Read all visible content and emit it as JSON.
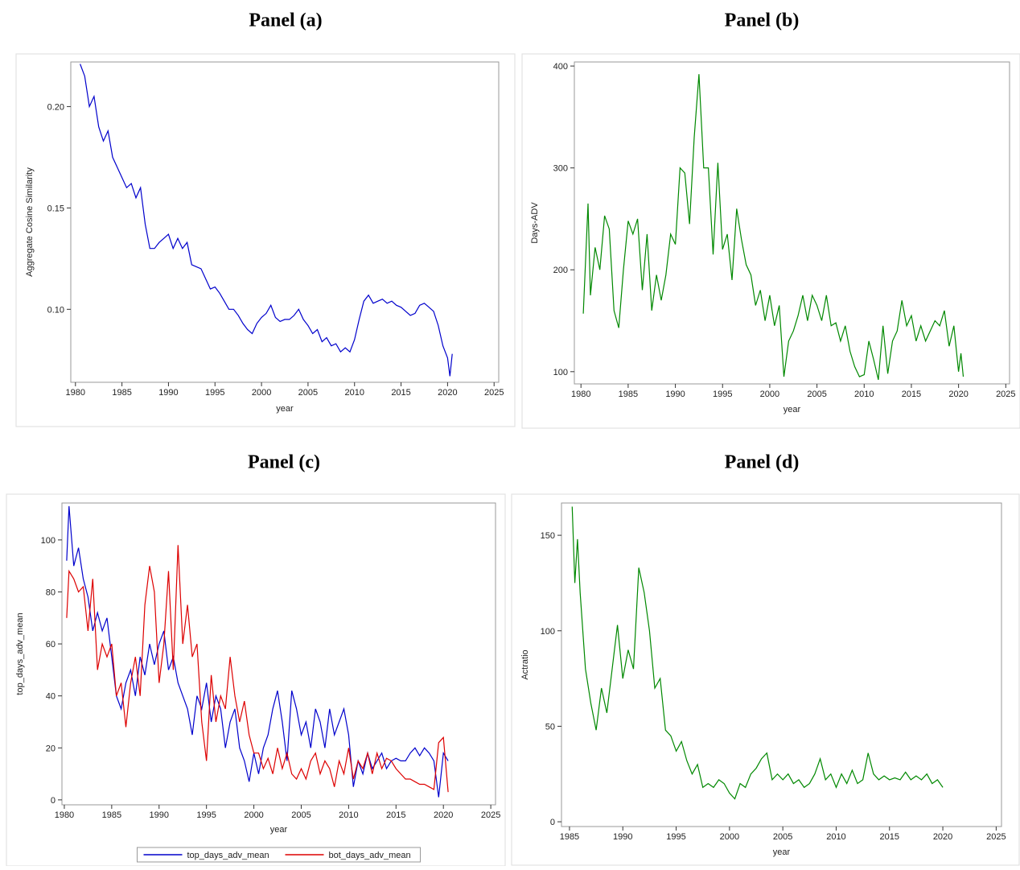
{
  "chart_data": [
    {
      "type": "line",
      "title": "Panel (a)",
      "xlabel": "year",
      "ylabel": "Aggregate Cosine Similarity",
      "xlim": [
        1979.5,
        2025.5
      ],
      "ylim": [
        0.064,
        0.222
      ],
      "xticks": [
        1980,
        1985,
        1990,
        1995,
        2000,
        2005,
        2010,
        2015,
        2020,
        2025
      ],
      "yticks": [
        {
          "value": 0.1,
          "label": "0.10"
        },
        0.15,
        {
          "value": 0.2,
          "label": "0.20"
        }
      ],
      "x": [
        1980.5,
        1981,
        1981.5,
        1982,
        1982.5,
        1983,
        1983.5,
        1984,
        1984.5,
        1985,
        1985.5,
        1986,
        1986.5,
        1987,
        1987.5,
        1988,
        1988.5,
        1989,
        1989.5,
        1990,
        1990.5,
        1991,
        1991.5,
        1992,
        1992.5,
        1993,
        1993.5,
        1994,
        1994.5,
        1995,
        1995.5,
        1996,
        1996.5,
        1997,
        1997.5,
        1998,
        1998.5,
        1999,
        1999.5,
        2000,
        2000.5,
        2001,
        2001.5,
        2002,
        2002.5,
        2003,
        2003.5,
        2004,
        2004.5,
        2005,
        2005.5,
        2006,
        2006.5,
        2007,
        2007.5,
        2008,
        2008.5,
        2009,
        2009.5,
        2010,
        2010.5,
        2011,
        2011.5,
        2012,
        2012.5,
        2013,
        2013.5,
        2014,
        2014.5,
        2015,
        2015.5,
        2016,
        2016.5,
        2017,
        2017.5,
        2018,
        2018.5,
        2019,
        2019.5,
        2020,
        2020.25,
        2020.5
      ],
      "series": [
        {
          "color": "#0000cc",
          "values": [
            0.221,
            0.215,
            0.2,
            0.205,
            0.19,
            0.183,
            0.188,
            0.175,
            0.17,
            0.165,
            0.16,
            0.162,
            0.155,
            0.16,
            0.142,
            0.13,
            0.13,
            0.133,
            0.135,
            0.137,
            0.13,
            0.135,
            0.13,
            0.133,
            0.122,
            0.121,
            0.12,
            0.115,
            0.11,
            0.111,
            0.108,
            0.104,
            0.1,
            0.1,
            0.097,
            0.093,
            0.09,
            0.088,
            0.093,
            0.096,
            0.098,
            0.102,
            0.096,
            0.094,
            0.095,
            0.095,
            0.097,
            0.1,
            0.095,
            0.092,
            0.088,
            0.09,
            0.084,
            0.086,
            0.082,
            0.083,
            0.079,
            0.081,
            0.079,
            0.085,
            0.095,
            0.104,
            0.107,
            0.103,
            0.104,
            0.105,
            0.103,
            0.104,
            0.102,
            0.101,
            0.099,
            0.097,
            0.098,
            0.102,
            0.103,
            0.101,
            0.099,
            0.092,
            0.082,
            0.076,
            0.067,
            0.078
          ]
        }
      ]
    },
    {
      "type": "line",
      "title": "Panel (b)",
      "xlabel": "year",
      "ylabel": "Days-ADV",
      "xlim": [
        1979.3,
        2025.4
      ],
      "ylim": [
        88,
        404
      ],
      "xticks": [
        1980,
        1985,
        1990,
        1995,
        2000,
        2005,
        2010,
        2015,
        2020,
        2025
      ],
      "yticks": [
        100,
        200,
        300,
        400
      ],
      "x": [
        1980.25,
        1980.75,
        1981,
        1981.5,
        1982,
        1982.5,
        1983,
        1983.5,
        1984,
        1984.5,
        1985,
        1985.5,
        1986,
        1986.5,
        1987,
        1987.5,
        1988,
        1988.5,
        1989,
        1989.5,
        1990,
        1990.5,
        1991,
        1991.5,
        1992,
        1992.5,
        1993,
        1993.5,
        1994,
        1994.5,
        1995,
        1995.5,
        1996,
        1996.5,
        1997,
        1997.5,
        1998,
        1998.5,
        1999,
        1999.5,
        2000,
        2000.5,
        2001,
        2001.5,
        2002,
        2002.5,
        2003,
        2003.5,
        2004,
        2004.5,
        2005,
        2005.5,
        2006,
        2006.5,
        2007,
        2007.5,
        2008,
        2008.5,
        2009,
        2009.5,
        2010,
        2010.5,
        2011,
        2011.5,
        2012,
        2012.5,
        2013,
        2013.5,
        2014,
        2014.5,
        2015,
        2015.5,
        2016,
        2016.5,
        2017,
        2017.5,
        2018,
        2018.5,
        2019,
        2019.5,
        2020,
        2020.25,
        2020.5
      ],
      "series": [
        {
          "color": "#008800",
          "values": [
            157,
            265,
            175,
            222,
            200,
            253,
            240,
            160,
            143,
            200,
            248,
            235,
            250,
            180,
            235,
            160,
            195,
            170,
            195,
            235,
            225,
            300,
            295,
            245,
            330,
            392,
            300,
            300,
            215,
            305,
            220,
            235,
            190,
            260,
            230,
            205,
            195,
            165,
            180,
            150,
            175,
            145,
            165,
            95,
            130,
            140,
            155,
            175,
            150,
            175,
            165,
            150,
            175,
            145,
            148,
            130,
            145,
            120,
            105,
            95,
            97,
            130,
            112,
            92,
            145,
            98,
            130,
            140,
            170,
            145,
            155,
            130,
            145,
            130,
            140,
            150,
            145,
            160,
            125,
            145,
            100,
            118,
            95
          ]
        }
      ]
    },
    {
      "type": "line",
      "title": "Panel (c)",
      "xlabel": "year",
      "ylabel": "top_days_adv_mean",
      "xlim": [
        1979.75,
        2025.5
      ],
      "ylim": [
        -1.9,
        114.2
      ],
      "xticks": [
        1980,
        1985,
        1990,
        1995,
        2000,
        2005,
        2010,
        2015,
        2020,
        2025
      ],
      "yticks": [
        0,
        20,
        40,
        60,
        80,
        100
      ],
      "x": [
        1980.25,
        1980.5,
        1981,
        1981.5,
        1982,
        1982.5,
        1983,
        1983.5,
        1984,
        1984.5,
        1985,
        1985.5,
        1986,
        1986.5,
        1987,
        1987.5,
        1988,
        1988.5,
        1989,
        1989.5,
        1990,
        1990.5,
        1991,
        1991.5,
        1992,
        1992.5,
        1993,
        1993.5,
        1994,
        1994.5,
        1995,
        1995.5,
        1996,
        1996.5,
        1997,
        1997.5,
        1998,
        1998.5,
        1999,
        1999.5,
        2000,
        2000.5,
        2001,
        2001.5,
        2002,
        2002.5,
        2003,
        2003.5,
        2004,
        2004.5,
        2005,
        2005.5,
        2006,
        2006.5,
        2007,
        2007.5,
        2008,
        2008.5,
        2009,
        2009.5,
        2010,
        2010.5,
        2011,
        2011.5,
        2012,
        2012.5,
        2013,
        2013.5,
        2014,
        2014.5,
        2015,
        2015.5,
        2016,
        2016.5,
        2017,
        2017.5,
        2018,
        2018.5,
        2019,
        2019.5,
        2020,
        2020.5
      ],
      "series": [
        {
          "name": "top_days_adv_mean",
          "color": "#0000cc",
          "values": [
            92,
            113,
            90,
            97,
            85,
            78,
            65,
            72,
            65,
            70,
            55,
            40,
            35,
            45,
            50,
            40,
            55,
            48,
            60,
            52,
            60,
            65,
            50,
            55,
            45,
            40,
            35,
            25,
            40,
            35,
            45,
            30,
            40,
            35,
            20,
            30,
            35,
            20,
            15,
            7,
            18,
            10,
            20,
            25,
            35,
            42,
            30,
            15,
            42,
            35,
            25,
            30,
            20,
            35,
            30,
            20,
            35,
            25,
            30,
            35,
            25,
            5,
            15,
            10,
            18,
            12,
            15,
            18,
            12,
            15,
            16,
            15,
            15,
            18,
            20,
            17,
            20,
            18,
            15,
            1,
            18,
            15
          ]
        },
        {
          "name": "bot_days_adv_mean",
          "color": "#dd0000",
          "values": [
            70,
            88,
            85,
            80,
            82,
            65,
            85,
            50,
            60,
            55,
            60,
            40,
            45,
            28,
            45,
            55,
            40,
            75,
            90,
            80,
            45,
            60,
            88,
            50,
            98,
            60,
            75,
            55,
            60,
            30,
            15,
            48,
            30,
            40,
            35,
            55,
            40,
            30,
            38,
            25,
            18,
            18,
            12,
            16,
            10,
            20,
            12,
            18,
            10,
            8,
            12,
            8,
            15,
            18,
            10,
            15,
            12,
            5,
            15,
            10,
            20,
            8,
            15,
            12,
            18,
            10,
            18,
            12,
            16,
            15,
            12,
            10,
            8,
            8,
            7,
            6,
            6,
            5,
            4,
            22,
            24,
            3
          ]
        }
      ],
      "legend": "bottom"
    },
    {
      "type": "line",
      "title": "Panel (d)",
      "xlabel": "year",
      "ylabel": "Actratio",
      "xlim": [
        1984.25,
        2025.5
      ],
      "ylim": [
        -2.5,
        166.9
      ],
      "xticks": [
        1985,
        1990,
        1995,
        2000,
        2005,
        2010,
        2015,
        2020,
        2025
      ],
      "yticks": [
        0,
        50,
        100,
        150
      ],
      "x": [
        1985.25,
        1985.5,
        1985.75,
        1986,
        1986.5,
        1987,
        1987.5,
        1988,
        1988.5,
        1989,
        1989.5,
        1990,
        1990.5,
        1991,
        1991.5,
        1992,
        1992.5,
        1993,
        1993.5,
        1994,
        1994.5,
        1995,
        1995.5,
        1996,
        1996.5,
        1997,
        1997.5,
        1998,
        1998.5,
        1999,
        1999.5,
        2000,
        2000.5,
        2001,
        2001.5,
        2002,
        2002.5,
        2003,
        2003.5,
        2004,
        2004.5,
        2005,
        2005.5,
        2006,
        2006.5,
        2007,
        2007.5,
        2008,
        2008.5,
        2009,
        2009.5,
        2010,
        2010.5,
        2011,
        2011.5,
        2012,
        2012.5,
        2013,
        2013.5,
        2014,
        2014.5,
        2015,
        2015.5,
        2016,
        2016.5,
        2017,
        2017.5,
        2018,
        2018.5,
        2019,
        2019.5,
        2020
      ],
      "series": [
        {
          "color": "#008800",
          "values": [
            165,
            125,
            148,
            120,
            80,
            62,
            48,
            70,
            57,
            80,
            103,
            75,
            90,
            80,
            133,
            120,
            100,
            70,
            75,
            48,
            45,
            37,
            42,
            32,
            25,
            30,
            18,
            20,
            18,
            22,
            20,
            15,
            12,
            20,
            18,
            25,
            28,
            33,
            36,
            22,
            25,
            22,
            25,
            20,
            22,
            18,
            20,
            25,
            33,
            22,
            25,
            18,
            25,
            20,
            27,
            20,
            22,
            36,
            25,
            22,
            24,
            22,
            23,
            22,
            26,
            22,
            24,
            22,
            25,
            20,
            22,
            18
          ]
        }
      ]
    }
  ]
}
